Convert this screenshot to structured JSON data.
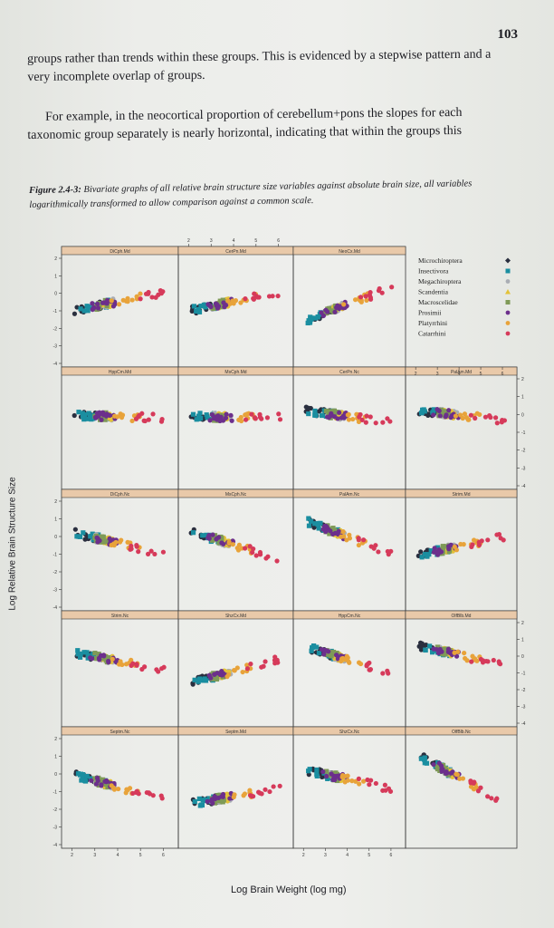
{
  "page_number": "103",
  "paragraphs": [
    "groups rather than trends within these groups. This is evidenced by a stepwise pattern and a very incomplete overlap of groups.",
    "For example, in the neocortical proportion of cerebellum+pons the slopes for each taxonomic group separately is nearly horizontal, indicating that within the groups this"
  ],
  "figure": {
    "caption_label": "Figure 2.4-3:",
    "caption_text": " Bivariate graphs of all relative brain structure size variables against absolute brain size, all variables logarithmically transformed to allow comparison against a common scale.",
    "xlabel": "Log Brain Weight (log mg)",
    "ylabel": "Log Relative Brain Structure Size"
  },
  "chart_data": {
    "type": "scatter",
    "layout": "trellis 4 columns x 5 rows",
    "xlabel": "Log Brain Weight (log mg)",
    "ylabel": "Log Relative Brain Structure Size",
    "x_ticks": [
      "2",
      "3",
      "4",
      "5",
      "6"
    ],
    "y_ticks": [
      "2",
      "1",
      "0",
      "-1",
      "-2",
      "-3",
      "-4"
    ],
    "xlim": [
      1.7,
      6.5
    ],
    "ylim": [
      -4.3,
      2.5
    ],
    "legend_position": "top-right panel",
    "legend": [
      {
        "name": "Microchiroptera",
        "color": "#2a2f3f",
        "marker": "diamond"
      },
      {
        "name": "Insectivora",
        "color": "#1a8ea0",
        "marker": "square"
      },
      {
        "name": "Megachiroptera",
        "color": "#a9adb4",
        "marker": "circle"
      },
      {
        "name": "Scandentia",
        "color": "#e3c238",
        "marker": "triangle"
      },
      {
        "name": "Macroscelidae",
        "color": "#7f9a57",
        "marker": "square"
      },
      {
        "name": "Prosimii",
        "color": "#6c2f8c",
        "marker": "circle"
      },
      {
        "name": "Platyrrhini",
        "color": "#e8a33a",
        "marker": "circle"
      },
      {
        "name": "Catarrhini",
        "color": "#d63a5a",
        "marker": "circle"
      }
    ],
    "panels": [
      {
        "label": "DiCph.Md",
        "intercept": -0.9,
        "slope": 0.3,
        "ymin_small": -0.5
      },
      {
        "label": "CerPn.Md",
        "intercept": -0.9,
        "slope": 0.3
      },
      {
        "label": "NeoCx.Md",
        "intercept": -1.6,
        "slope": 0.55
      },
      {
        "label": "HppCm.Md",
        "intercept": 0.2,
        "slope": -0.05
      },
      {
        "label": "MsCph.Md",
        "intercept": 0.1,
        "slope": -0.02
      },
      {
        "label": "CerPn.Nc",
        "intercept": 0.5,
        "slope": -0.2
      },
      {
        "label": "PalAm.Md",
        "intercept": 0.5,
        "slope": -0.15
      },
      {
        "label": "DiCph.Nc",
        "intercept": 0.5,
        "slope": -0.35
      },
      {
        "label": "MsCph.Nc",
        "intercept": 0.6,
        "slope": -0.45
      },
      {
        "label": "PalAm.Nc",
        "intercept": 1.3,
        "slope": -0.55
      },
      {
        "label": "Strim.Md",
        "intercept": -1.0,
        "slope": 0.3
      },
      {
        "label": "Strim.Nc",
        "intercept": 0.5,
        "slope": -0.3
      },
      {
        "label": "ShzCx.Md",
        "intercept": -1.6,
        "slope": 0.4
      },
      {
        "label": "HppCm.Nc",
        "intercept": 0.9,
        "slope": -0.45
      },
      {
        "label": "OlfBlb.Md",
        "intercept": 1.0,
        "slope": -0.35
      },
      {
        "label": "Septm.Nc",
        "intercept": 0.2,
        "slope": -0.4
      },
      {
        "label": "Septm.Md",
        "intercept": -1.7,
        "slope": 0.25
      },
      {
        "label": "ShzCx.Nc",
        "intercept": 0.5,
        "slope": -0.3
      },
      {
        "label": "OlfBlb.Nc",
        "intercept": 1.5,
        "slope": -0.75
      }
    ],
    "group_x_ranges": [
      [
        2.1,
        3.3
      ],
      [
        2.2,
        3.6
      ],
      [
        3.0,
        3.9
      ],
      [
        3.3,
        3.8
      ],
      [
        3.0,
        3.6
      ],
      [
        2.8,
        4.0
      ],
      [
        3.7,
        5.0
      ],
      [
        4.5,
        6.1
      ]
    ]
  }
}
